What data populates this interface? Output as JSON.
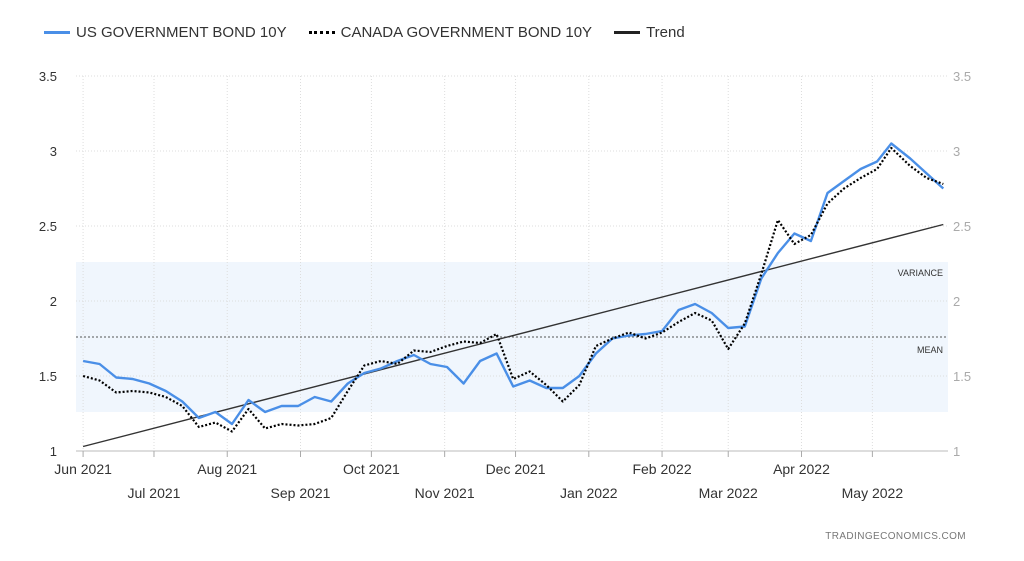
{
  "legend": {
    "us_label": "US GOVERNMENT BOND 10Y",
    "ca_label": "CANADA GOVERNMENT BOND 10Y",
    "trend_label": "Trend"
  },
  "watermark": "TRADINGECONOMICS.COM",
  "colors": {
    "us": "#4a8fe7",
    "ca": "#000000",
    "trend": "#333333",
    "band": "#f0f6fd"
  },
  "chart_data": {
    "type": "line",
    "ylim": [
      1,
      3.5
    ],
    "y_ticks": [
      "1",
      "1.5",
      "2",
      "2.5",
      "3",
      "3.5"
    ],
    "x_ticks_row1": [
      "Jun 2021",
      "Aug 2021",
      "Oct 2021",
      "Dec 2021",
      "Feb 2022",
      "Apr 2022"
    ],
    "x_ticks_row2": [
      "Jul 2021",
      "Sep 2021",
      "Nov 2021",
      "Jan 2022",
      "Mar 2022",
      "May 2022"
    ],
    "grid": true,
    "legend_position": "top-left",
    "annotations": {
      "variance": "VARIANCE",
      "mean": "MEAN"
    },
    "variance_band": [
      1.26,
      2.26
    ],
    "mean": 1.76,
    "series": [
      {
        "name": "US GOVERNMENT BOND 10Y",
        "x": [
          "2021-06-01",
          "2021-06-08",
          "2021-06-15",
          "2021-06-22",
          "2021-06-29",
          "2021-07-06",
          "2021-07-13",
          "2021-07-20",
          "2021-07-27",
          "2021-08-03",
          "2021-08-10",
          "2021-08-17",
          "2021-08-24",
          "2021-08-31",
          "2021-09-07",
          "2021-09-14",
          "2021-09-21",
          "2021-09-28",
          "2021-10-05",
          "2021-10-12",
          "2021-10-19",
          "2021-10-26",
          "2021-11-02",
          "2021-11-09",
          "2021-11-16",
          "2021-11-23",
          "2021-11-30",
          "2021-12-07",
          "2021-12-14",
          "2021-12-21",
          "2021-12-28",
          "2022-01-04",
          "2022-01-11",
          "2022-01-18",
          "2022-01-25",
          "2022-02-01",
          "2022-02-08",
          "2022-02-15",
          "2022-02-22",
          "2022-03-01",
          "2022-03-08",
          "2022-03-15",
          "2022-03-22",
          "2022-03-29",
          "2022-04-05",
          "2022-04-12",
          "2022-04-19",
          "2022-04-26",
          "2022-05-03",
          "2022-05-09",
          "2022-05-17",
          "2022-05-24",
          "2022-05-31"
        ],
        "values": [
          1.6,
          1.58,
          1.49,
          1.48,
          1.45,
          1.4,
          1.33,
          1.22,
          1.26,
          1.18,
          1.34,
          1.26,
          1.3,
          1.3,
          1.36,
          1.33,
          1.45,
          1.52,
          1.55,
          1.6,
          1.64,
          1.58,
          1.56,
          1.45,
          1.6,
          1.65,
          1.43,
          1.47,
          1.42,
          1.42,
          1.5,
          1.65,
          1.75,
          1.77,
          1.78,
          1.8,
          1.94,
          1.98,
          1.92,
          1.82,
          1.83,
          2.15,
          2.32,
          2.45,
          2.4,
          2.72,
          2.8,
          2.88,
          2.93,
          3.05,
          2.95,
          2.85,
          2.75
        ]
      },
      {
        "name": "CANADA GOVERNMENT BOND 10Y",
        "x": [
          "2021-06-01",
          "2021-06-08",
          "2021-06-15",
          "2021-06-22",
          "2021-06-29",
          "2021-07-06",
          "2021-07-13",
          "2021-07-20",
          "2021-07-27",
          "2021-08-03",
          "2021-08-10",
          "2021-08-17",
          "2021-08-24",
          "2021-08-31",
          "2021-09-07",
          "2021-09-14",
          "2021-09-21",
          "2021-09-28",
          "2021-10-05",
          "2021-10-12",
          "2021-10-19",
          "2021-10-26",
          "2021-11-02",
          "2021-11-09",
          "2021-11-16",
          "2021-11-23",
          "2021-11-30",
          "2021-12-07",
          "2021-12-14",
          "2021-12-21",
          "2021-12-28",
          "2022-01-04",
          "2022-01-11",
          "2022-01-18",
          "2022-01-25",
          "2022-02-01",
          "2022-02-08",
          "2022-02-15",
          "2022-02-22",
          "2022-03-01",
          "2022-03-08",
          "2022-03-15",
          "2022-03-22",
          "2022-03-29",
          "2022-04-05",
          "2022-04-12",
          "2022-04-19",
          "2022-04-26",
          "2022-05-03",
          "2022-05-09",
          "2022-05-17",
          "2022-05-24",
          "2022-05-31"
        ],
        "values": [
          1.5,
          1.47,
          1.39,
          1.4,
          1.39,
          1.36,
          1.3,
          1.16,
          1.19,
          1.13,
          1.28,
          1.15,
          1.18,
          1.17,
          1.18,
          1.22,
          1.4,
          1.57,
          1.6,
          1.58,
          1.67,
          1.66,
          1.7,
          1.73,
          1.72,
          1.78,
          1.48,
          1.53,
          1.44,
          1.33,
          1.44,
          1.7,
          1.75,
          1.79,
          1.75,
          1.79,
          1.86,
          1.92,
          1.87,
          1.68,
          1.85,
          2.18,
          2.54,
          2.38,
          2.44,
          2.65,
          2.75,
          2.82,
          2.88,
          3.02,
          2.9,
          2.82,
          2.78
        ]
      },
      {
        "name": "Trend",
        "x": [
          "2021-06-01",
          "2022-05-31"
        ],
        "values": [
          1.03,
          2.51
        ]
      }
    ]
  }
}
